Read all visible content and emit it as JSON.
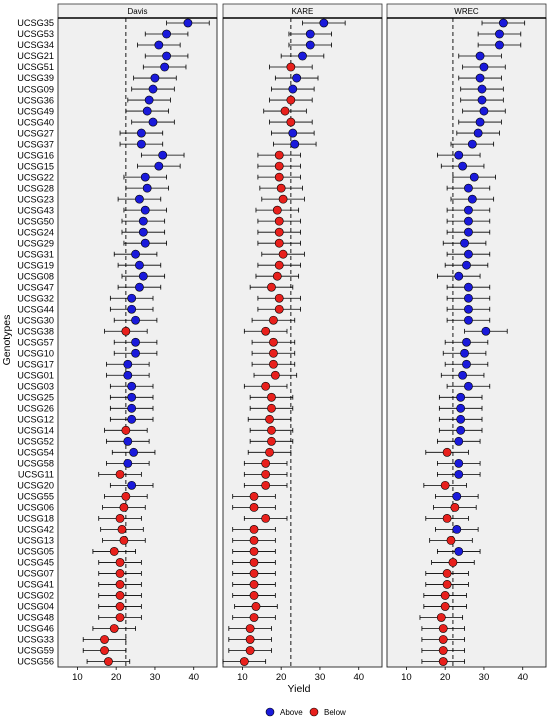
{
  "chart_data": {
    "type": "scatter",
    "xlabel": "Yield",
    "ylabel": "Genotypes",
    "xlim": [
      5,
      46
    ],
    "xticks": [
      10,
      20,
      30,
      40
    ],
    "legend": {
      "placement": "bottom",
      "entries": [
        {
          "label": "Above",
          "color": "#1a1adb"
        },
        {
          "label": "Below",
          "color": "#e8201c"
        }
      ]
    },
    "colors": {
      "Above": "#1a1adb",
      "Below": "#e8201c",
      "panel_bg": "#f0f0f0",
      "strip_bg": "#f0f0f0"
    },
    "genotypes": [
      "UCSG35",
      "UCSG53",
      "UCSG34",
      "UCSG21",
      "UCSG51",
      "UCSG39",
      "UCSG09",
      "UCSG36",
      "UCSG49",
      "UCSG40",
      "UCSG27",
      "UCSG37",
      "UCSG16",
      "UCSG15",
      "UCSG22",
      "UCSG28",
      "UCSG23",
      "UCSG43",
      "UCSG50",
      "UCSG24",
      "UCSG29",
      "UCSG31",
      "UCSG19",
      "UCSG08",
      "UCSG47",
      "UCSG32",
      "UCSG44",
      "UCSG30",
      "UCSG38",
      "UCSG57",
      "UCSG10",
      "UCSG17",
      "UCSG01",
      "UCSG03",
      "UCSG25",
      "UCSG26",
      "UCSG12",
      "UCSG14",
      "UCSG52",
      "UCSG54",
      "UCSG58",
      "UCSG11",
      "UCSG20",
      "UCSG55",
      "UCSG06",
      "UCSG18",
      "UCSG42",
      "UCSG13",
      "UCSG05",
      "UCSG45",
      "UCSG07",
      "UCSG41",
      "UCSG02",
      "UCSG04",
      "UCSG48",
      "UCSG46",
      "UCSG33",
      "UCSG59",
      "UCSG56"
    ],
    "panels": [
      {
        "name": "Davis",
        "mean": 22.5,
        "err": 5.5,
        "values": [
          38.5,
          33,
          31,
          33,
          32.5,
          30,
          29.5,
          28.5,
          28,
          29.5,
          26.5,
          26.5,
          32,
          31,
          27.5,
          28,
          26,
          27.5,
          27,
          27,
          27.5,
          25,
          26,
          27,
          26,
          24,
          24,
          25,
          22.5,
          25,
          25,
          23,
          23,
          24,
          24,
          24,
          24,
          22.5,
          23,
          24.5,
          23,
          21,
          24,
          22.5,
          22,
          21,
          21.5,
          22,
          19.5,
          21,
          21,
          21,
          21,
          21,
          21,
          19.5,
          17,
          17,
          18
        ],
        "status": [
          "Above",
          "Above",
          "Above",
          "Above",
          "Above",
          "Above",
          "Above",
          "Above",
          "Above",
          "Above",
          "Above",
          "Above",
          "Above",
          "Above",
          "Above",
          "Above",
          "Above",
          "Above",
          "Above",
          "Above",
          "Above",
          "Above",
          "Above",
          "Above",
          "Above",
          "Above",
          "Above",
          "Above",
          "Below",
          "Above",
          "Above",
          "Above",
          "Above",
          "Above",
          "Above",
          "Above",
          "Above",
          "Below",
          "Above",
          "Above",
          "Above",
          "Below",
          "Above",
          "Below",
          "Below",
          "Below",
          "Below",
          "Below",
          "Below",
          "Below",
          "Below",
          "Below",
          "Below",
          "Below",
          "Below",
          "Below",
          "Below",
          "Below",
          "Below"
        ]
      },
      {
        "name": "KARE",
        "mean": 22.5,
        "err": 5.5,
        "values": [
          31,
          27.5,
          27.5,
          25.5,
          22.5,
          24,
          23,
          22.5,
          21,
          22.5,
          23,
          23.5,
          19.5,
          19.5,
          19.5,
          20,
          20.5,
          19,
          19.5,
          19.5,
          19.5,
          20.5,
          19.5,
          19,
          17.5,
          19.5,
          19.5,
          18,
          16,
          18,
          18,
          18,
          18.5,
          16,
          17.5,
          17.5,
          17,
          17.5,
          17.5,
          17,
          16,
          16,
          16,
          13,
          13,
          16,
          13,
          13,
          13,
          13,
          13,
          13,
          13,
          13.5,
          13,
          12,
          12,
          12,
          10.5
        ],
        "status": [
          "Above",
          "Above",
          "Above",
          "Above",
          "Below",
          "Above",
          "Above",
          "Below",
          "Below",
          "Below",
          "Above",
          "Above",
          "Below",
          "Below",
          "Below",
          "Below",
          "Below",
          "Below",
          "Below",
          "Below",
          "Below",
          "Below",
          "Below",
          "Below",
          "Below",
          "Below",
          "Below",
          "Below",
          "Below",
          "Below",
          "Below",
          "Below",
          "Below",
          "Below",
          "Below",
          "Below",
          "Below",
          "Below",
          "Below",
          "Below",
          "Below",
          "Below",
          "Below",
          "Below",
          "Below",
          "Below",
          "Below",
          "Below",
          "Below",
          "Below",
          "Below",
          "Below",
          "Below",
          "Below",
          "Below",
          "Below",
          "Below",
          "Below",
          "Below"
        ]
      },
      {
        "name": "WREC",
        "mean": 22,
        "err": 5.5,
        "values": [
          35,
          34,
          34,
          29,
          30,
          29,
          29.5,
          29.5,
          30,
          29,
          28.5,
          27,
          23.5,
          24.5,
          27.5,
          26,
          27,
          26,
          26,
          26,
          25,
          26,
          25.5,
          23.5,
          26,
          26,
          26,
          26,
          30.5,
          25.5,
          25,
          25.5,
          24.5,
          26,
          24,
          24,
          24,
          24,
          23.5,
          20.5,
          23.5,
          23.5,
          20,
          23,
          22.5,
          20.5,
          23,
          21.5,
          23.5,
          22,
          20.5,
          20.5,
          20,
          20,
          19,
          19.5,
          19.5,
          19.5,
          19.5
        ],
        "status": [
          "Above",
          "Above",
          "Above",
          "Above",
          "Above",
          "Above",
          "Above",
          "Above",
          "Above",
          "Above",
          "Above",
          "Above",
          "Above",
          "Above",
          "Above",
          "Above",
          "Above",
          "Above",
          "Above",
          "Above",
          "Above",
          "Above",
          "Above",
          "Above",
          "Above",
          "Above",
          "Above",
          "Above",
          "Above",
          "Above",
          "Above",
          "Above",
          "Above",
          "Above",
          "Above",
          "Above",
          "Above",
          "Above",
          "Above",
          "Below",
          "Above",
          "Above",
          "Below",
          "Above",
          "Below",
          "Below",
          "Above",
          "Below",
          "Above",
          "Below",
          "Below",
          "Below",
          "Below",
          "Below",
          "Below",
          "Below",
          "Below",
          "Below",
          "Below"
        ]
      }
    ]
  }
}
